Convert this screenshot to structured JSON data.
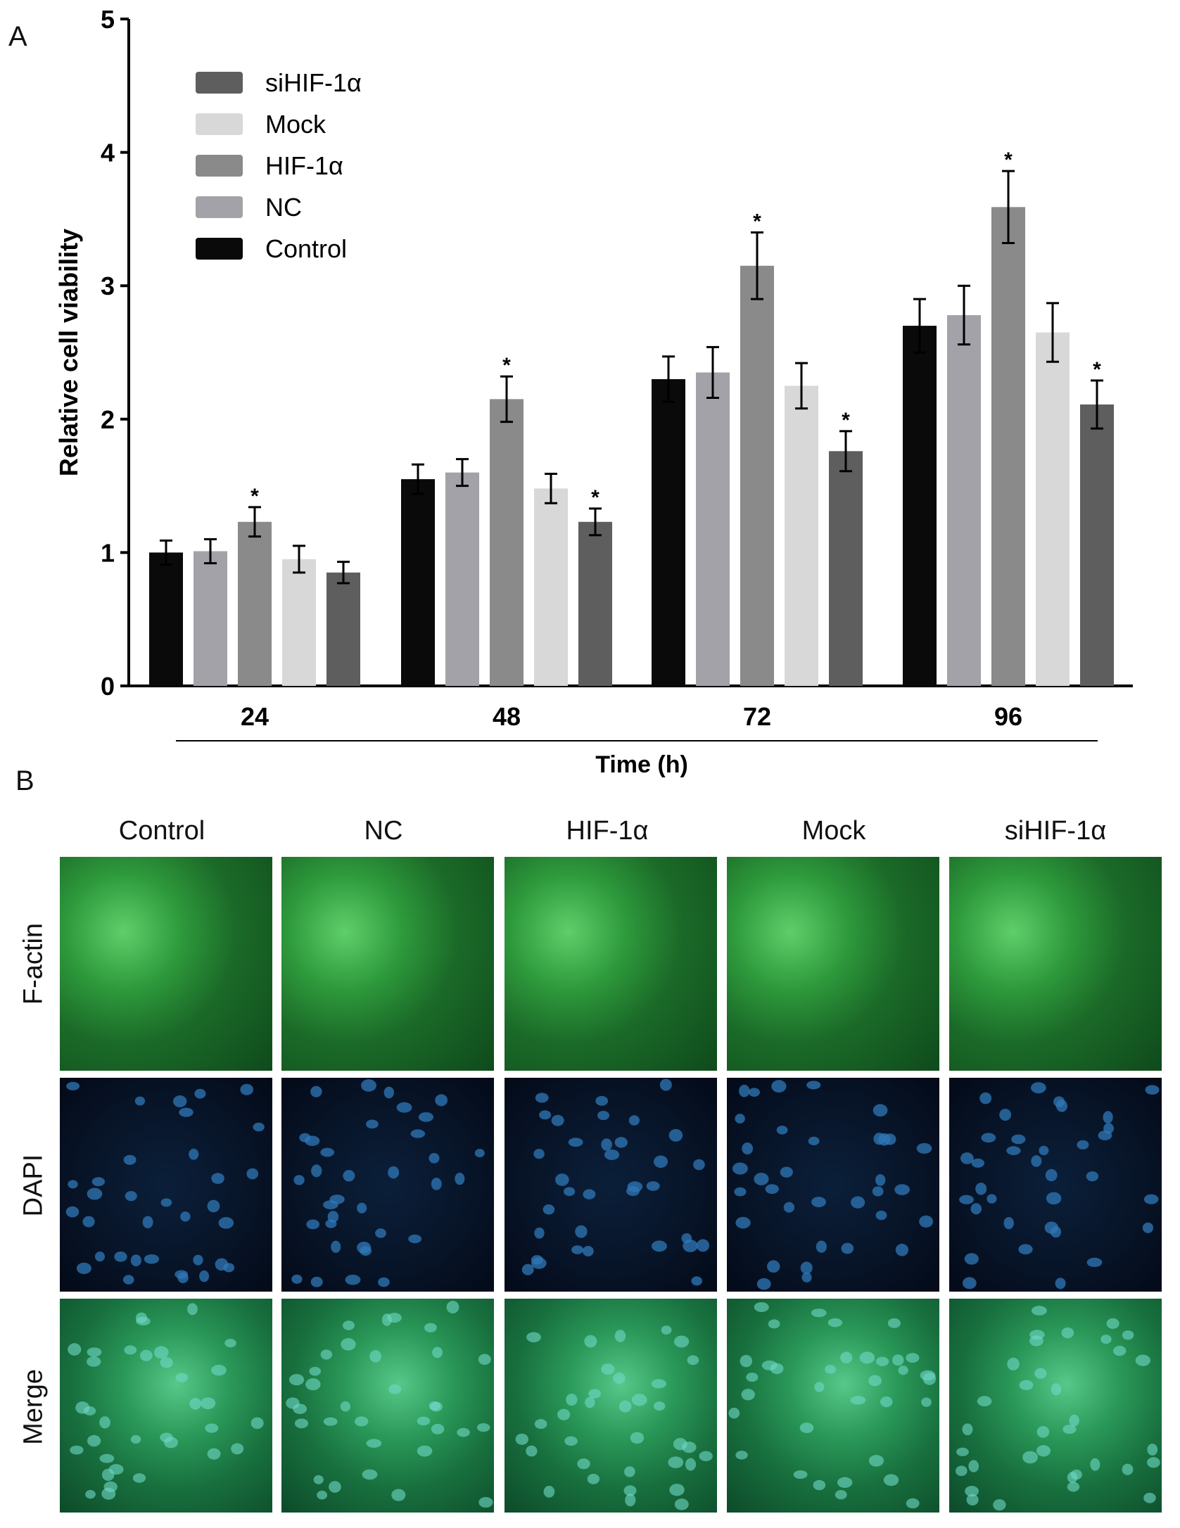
{
  "panel_a": {
    "label": "A"
  },
  "panel_b": {
    "label": "B",
    "columns": [
      "Control",
      "NC",
      "HIF-1α",
      "Mock",
      "siHIF-1α"
    ],
    "rows": [
      "F-actin",
      "DAPI",
      "Merge"
    ]
  },
  "chart_data": {
    "type": "bar",
    "title": "",
    "xlabel": "Time (h)",
    "ylabel": "Relative cell viability",
    "ylim": [
      0,
      5
    ],
    "yticks": [
      0,
      1,
      2,
      3,
      4,
      5
    ],
    "categories": [
      "24",
      "48",
      "72",
      "96"
    ],
    "series": [
      {
        "name": "Control",
        "color": "#0a0a0a",
        "values": [
          1.0,
          1.55,
          2.3,
          2.7
        ],
        "errors": [
          0.09,
          0.11,
          0.17,
          0.2
        ],
        "sig": [
          false,
          false,
          false,
          false
        ]
      },
      {
        "name": "NC",
        "color": "#a2a2a8",
        "values": [
          1.01,
          1.6,
          2.35,
          2.78
        ],
        "errors": [
          0.09,
          0.1,
          0.19,
          0.22
        ],
        "sig": [
          false,
          false,
          false,
          false
        ]
      },
      {
        "name": "HIF-1α",
        "color": "#8a8a8a",
        "values": [
          1.23,
          2.15,
          3.15,
          3.59
        ],
        "errors": [
          0.11,
          0.17,
          0.25,
          0.27
        ],
        "sig": [
          true,
          true,
          true,
          true
        ]
      },
      {
        "name": "Mock",
        "color": "#d8d8d8",
        "values": [
          0.95,
          1.48,
          2.25,
          2.65
        ],
        "errors": [
          0.1,
          0.11,
          0.17,
          0.22
        ],
        "sig": [
          false,
          false,
          false,
          false
        ]
      },
      {
        "name": "siHIF-1α",
        "color": "#5e5e5e",
        "values": [
          0.85,
          1.23,
          1.76,
          2.11
        ],
        "errors": [
          0.08,
          0.1,
          0.15,
          0.18
        ],
        "sig": [
          false,
          true,
          true,
          true
        ]
      }
    ],
    "legend_order": [
      "siHIF-1α",
      "Mock",
      "HIF-1α",
      "NC",
      "Control"
    ],
    "significance_marker": "*",
    "legend_position": "top-left"
  }
}
